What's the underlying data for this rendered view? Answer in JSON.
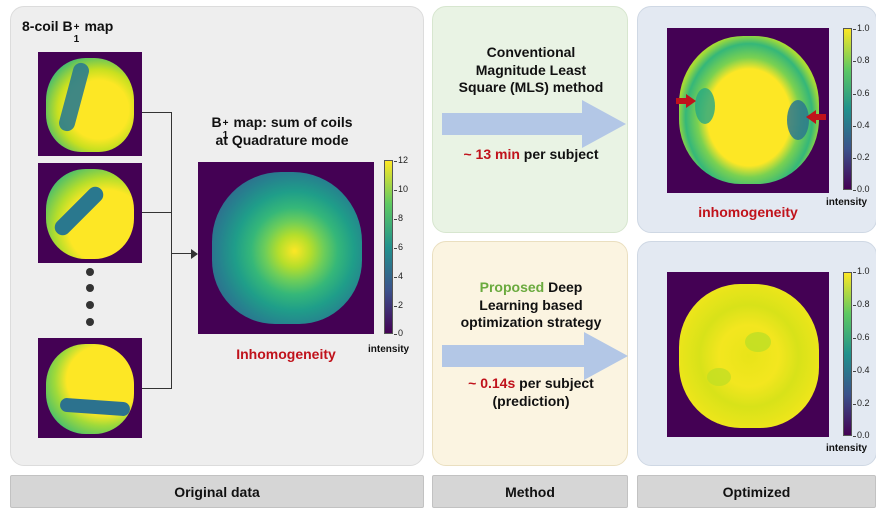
{
  "original": {
    "coil_title": "8-coil B",
    "coil_title_sup": "+",
    "coil_title_sub": "1",
    "coil_title_end": "map",
    "sum_title_b": "B",
    "sum_title_sup": "+",
    "sum_title_sub": "1",
    "sum_title_line1_rest": "map: sum of coils",
    "sum_title_line2": "at Quadrature mode",
    "inhomogeneity": "Inhomogeneity",
    "colorbar": {
      "ticks": [
        "12",
        "10",
        "8",
        "6",
        "4",
        "2",
        "0"
      ],
      "label": "intensity"
    }
  },
  "conventional": {
    "line1": "Conventional",
    "line2": "Magnitude Least",
    "line3": "Square (MLS) method",
    "time_value": "~ 13 min",
    "time_rest": "per subject"
  },
  "proposed": {
    "word_proposed": "Proposed",
    "word_rest": "Deep",
    "line2": "Learning based",
    "line3": "optimization strategy",
    "time_value": "~ 0.14s",
    "time_rest": "per subject",
    "time_note": "(prediction)"
  },
  "optimized": {
    "inhomogeneity": "inhomogeneity",
    "colorbar": {
      "ticks": [
        "1.0",
        "0.8",
        "0.6",
        "0.4",
        "0.2",
        "0.0"
      ],
      "label": "intensity"
    }
  },
  "footer": {
    "original": "Original data",
    "method": "Method",
    "optimized": "Optimized"
  },
  "colors": {
    "red": "#c0121b",
    "green": "#6aaa3e",
    "arrow": "#b3c7e6"
  }
}
